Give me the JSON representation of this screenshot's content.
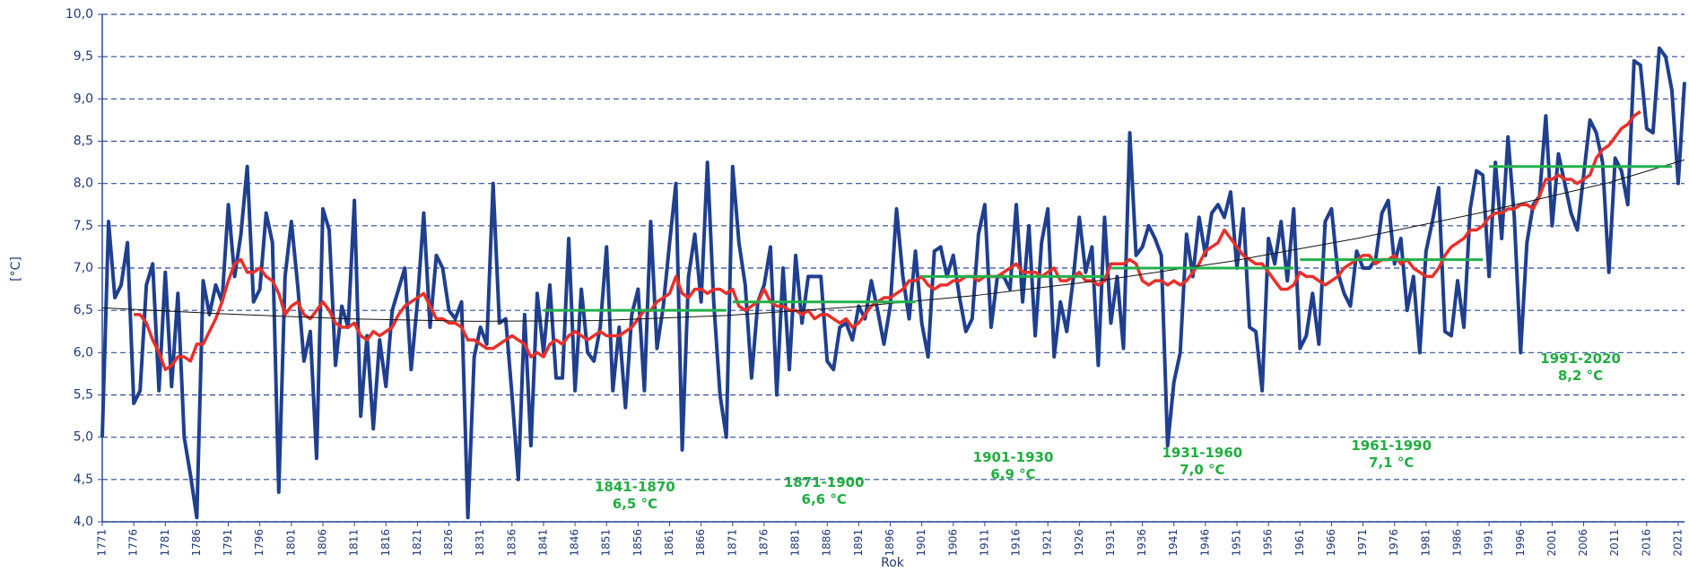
{
  "chart_data": {
    "type": "line",
    "ylabel": "[°C]",
    "xlabel": "Rok",
    "xlim": [
      1771,
      2022
    ],
    "ylim": [
      4,
      10
    ],
    "grid": true,
    "yticks": [
      {
        "value": 4,
        "label": "4,0"
      },
      {
        "value": 4.5,
        "label": "4,5"
      },
      {
        "value": 5,
        "label": "5,0"
      },
      {
        "value": 5.5,
        "label": "5,5"
      },
      {
        "value": 6,
        "label": "6,0"
      },
      {
        "value": 6.5,
        "label": "6,5"
      },
      {
        "value": 7,
        "label": "7,0"
      },
      {
        "value": 7.5,
        "label": "7,5"
      },
      {
        "value": 8,
        "label": "8,0"
      },
      {
        "value": 8.5,
        "label": "8,5"
      },
      {
        "value": 9,
        "label": "9,0"
      },
      {
        "value": 9.5,
        "label": "9,5"
      },
      {
        "value": 10,
        "label": "10,0"
      }
    ],
    "xticks": [
      1771,
      1776,
      1781,
      1786,
      1791,
      1796,
      1801,
      1806,
      1811,
      1816,
      1821,
      1826,
      1831,
      1836,
      1841,
      1846,
      1851,
      1856,
      1861,
      1866,
      1871,
      1876,
      1881,
      1886,
      1891,
      1896,
      1901,
      1906,
      1911,
      1916,
      1921,
      1926,
      1931,
      1936,
      1941,
      1946,
      1951,
      1956,
      1961,
      1966,
      1971,
      1976,
      1981,
      1986,
      1991,
      1996,
      2001,
      2006,
      2011,
      2016,
      2021
    ],
    "x": [
      1771,
      1772,
      1773,
      1774,
      1775,
      1776,
      1777,
      1778,
      1779,
      1780,
      1781,
      1782,
      1783,
      1784,
      1785,
      1786,
      1787,
      1788,
      1789,
      1790,
      1791,
      1792,
      1793,
      1794,
      1795,
      1796,
      1797,
      1798,
      1799,
      1800,
      1801,
      1802,
      1803,
      1804,
      1805,
      1806,
      1807,
      1808,
      1809,
      1810,
      1811,
      1812,
      1813,
      1814,
      1815,
      1816,
      1817,
      1818,
      1819,
      1820,
      1821,
      1822,
      1823,
      1824,
      1825,
      1826,
      1827,
      1828,
      1829,
      1830,
      1831,
      1832,
      1833,
      1834,
      1835,
      1836,
      1837,
      1838,
      1839,
      1840,
      1841,
      1842,
      1843,
      1844,
      1845,
      1846,
      1847,
      1848,
      1849,
      1850,
      1851,
      1852,
      1853,
      1854,
      1855,
      1856,
      1857,
      1858,
      1859,
      1860,
      1861,
      1862,
      1863,
      1864,
      1865,
      1866,
      1867,
      1868,
      1869,
      1870,
      1871,
      1872,
      1873,
      1874,
      1875,
      1876,
      1877,
      1878,
      1879,
      1880,
      1881,
      1882,
      1883,
      1884,
      1885,
      1886,
      1887,
      1888,
      1889,
      1890,
      1891,
      1892,
      1893,
      1894,
      1895,
      1896,
      1897,
      1898,
      1899,
      1900,
      1901,
      1902,
      1903,
      1904,
      1905,
      1906,
      1907,
      1908,
      1909,
      1910,
      1911,
      1912,
      1913,
      1914,
      1915,
      1916,
      1917,
      1918,
      1919,
      1920,
      1921,
      1922,
      1923,
      1924,
      1925,
      1926,
      1927,
      1928,
      1929,
      1930,
      1931,
      1932,
      1933,
      1934,
      1935,
      1936,
      1937,
      1938,
      1939,
      1940,
      1941,
      1942,
      1943,
      1944,
      1945,
      1946,
      1947,
      1948,
      1949,
      1950,
      1951,
      1952,
      1953,
      1954,
      1955,
      1956,
      1957,
      1958,
      1959,
      1960,
      1961,
      1962,
      1963,
      1964,
      1965,
      1966,
      1967,
      1968,
      1969,
      1970,
      1971,
      1972,
      1973,
      1974,
      1975,
      1976,
      1977,
      1978,
      1979,
      1980,
      1981,
      1982,
      1983,
      1984,
      1985,
      1986,
      1987,
      1988,
      1989,
      1990,
      1991,
      1992,
      1993,
      1994,
      1995,
      1996,
      1997,
      1998,
      1999,
      2000,
      2001,
      2002,
      2003,
      2004,
      2005,
      2006,
      2007,
      2008,
      2009,
      2010,
      2011,
      2012,
      2013,
      2014,
      2015,
      2016,
      2017,
      2018,
      2019,
      2020,
      2021,
      2022
    ],
    "series": [
      {
        "color": "#1f3f8f",
        "width": 4,
        "values": [
          5.0,
          7.55,
          6.65,
          6.8,
          7.3,
          5.4,
          5.55,
          6.8,
          7.05,
          5.55,
          6.95,
          5.6,
          6.7,
          5.0,
          4.55,
          4.05,
          6.85,
          6.45,
          6.8,
          6.6,
          7.75,
          6.9,
          7.4,
          8.2,
          6.6,
          6.75,
          7.65,
          7.3,
          4.35,
          6.9,
          7.55,
          6.8,
          5.9,
          6.25,
          4.75,
          7.7,
          7.45,
          5.85,
          6.55,
          6.3,
          7.8,
          5.25,
          6.2,
          5.1,
          6.15,
          5.6,
          6.5,
          6.75,
          7.0,
          5.8,
          6.6,
          7.65,
          6.3,
          7.15,
          7.0,
          6.5,
          6.4,
          6.6,
          4.05,
          5.95,
          6.3,
          6.1,
          8.0,
          6.35,
          6.4,
          5.5,
          4.5,
          6.45,
          4.9,
          6.7,
          6.0,
          6.8,
          5.7,
          5.7,
          7.35,
          5.55,
          6.75,
          6.0,
          5.9,
          6.3,
          7.25,
          5.55,
          6.3,
          5.35,
          6.45,
          6.75,
          5.55,
          7.55,
          6.05,
          6.55,
          7.3,
          8.0,
          4.85,
          6.9,
          7.4,
          6.6,
          8.25,
          6.6,
          5.5,
          5.0,
          8.2,
          7.3,
          6.8,
          5.7,
          6.6,
          6.8,
          7.25,
          5.5,
          7.0,
          5.8,
          7.15,
          6.35,
          6.9,
          6.9,
          6.9,
          5.9,
          5.8,
          6.3,
          6.35,
          6.15,
          6.55,
          6.4,
          6.85,
          6.5,
          6.1,
          6.55,
          7.7,
          6.9,
          6.4,
          7.2,
          6.35,
          5.95,
          7.2,
          7.25,
          6.9,
          7.15,
          6.65,
          6.25,
          6.4,
          7.4,
          7.75,
          6.3,
          6.9,
          6.9,
          6.75,
          7.75,
          6.6,
          7.5,
          6.2,
          7.3,
          7.7,
          5.95,
          6.6,
          6.25,
          6.85,
          7.6,
          6.95,
          7.25,
          5.85,
          7.6,
          6.35,
          6.9,
          6.05,
          8.6,
          7.15,
          7.25,
          7.5,
          7.35,
          7.15,
          4.9,
          5.65,
          6.0,
          7.4,
          6.9,
          7.6,
          7.15,
          7.65,
          7.75,
          7.6,
          7.9,
          7.0,
          7.7,
          6.3,
          6.25,
          5.55,
          7.35,
          7.05,
          7.55,
          6.85,
          7.7,
          6.05,
          6.2,
          6.7,
          6.1,
          7.55,
          7.7,
          6.95,
          6.7,
          6.55,
          7.2,
          7.0,
          7.0,
          7.1,
          7.65,
          7.8,
          7.05,
          7.35,
          6.5,
          6.9,
          6.0,
          7.2,
          7.55,
          7.95,
          6.25,
          6.2,
          6.85,
          6.3,
          7.7,
          8.15,
          8.1,
          6.9,
          8.25,
          7.35,
          8.55,
          7.6,
          6.0,
          7.3,
          7.75,
          7.85,
          8.8,
          7.5,
          8.35,
          8.0,
          7.65,
          7.45,
          8.1,
          8.75,
          8.6,
          8.25,
          6.95,
          8.3,
          8.15,
          7.75,
          9.45,
          9.4,
          8.65,
          8.6,
          9.6,
          9.5,
          9.1,
          8.0,
          9.2
        ]
      },
      {
        "color": "#e8302a",
        "width": 3.5,
        "values": [
          null,
          null,
          null,
          null,
          null,
          6.45,
          6.45,
          6.35,
          6.15,
          6.0,
          5.8,
          5.85,
          5.95,
          5.95,
          5.9,
          6.1,
          6.1,
          6.25,
          6.4,
          6.6,
          6.85,
          7.05,
          7.1,
          6.95,
          6.95,
          7.0,
          6.9,
          6.85,
          6.7,
          6.45,
          6.55,
          6.6,
          6.45,
          6.4,
          6.5,
          6.6,
          6.5,
          6.35,
          6.3,
          6.3,
          6.35,
          6.2,
          6.15,
          6.25,
          6.2,
          6.25,
          6.3,
          6.45,
          6.55,
          6.6,
          6.65,
          6.7,
          6.55,
          6.4,
          6.4,
          6.35,
          6.35,
          6.3,
          6.15,
          6.15,
          6.1,
          6.05,
          6.05,
          6.1,
          6.15,
          6.2,
          6.15,
          6.1,
          5.95,
          6.0,
          5.95,
          6.1,
          6.15,
          6.1,
          6.2,
          6.25,
          6.2,
          6.15,
          6.2,
          6.25,
          6.2,
          6.2,
          6.2,
          6.25,
          6.3,
          6.4,
          6.5,
          6.5,
          6.6,
          6.65,
          6.7,
          6.9,
          6.7,
          6.65,
          6.75,
          6.75,
          6.7,
          6.75,
          6.75,
          6.7,
          6.75,
          6.55,
          6.5,
          6.55,
          6.6,
          6.75,
          6.6,
          6.55,
          6.55,
          6.5,
          6.5,
          6.45,
          6.5,
          6.4,
          6.45,
          6.45,
          6.4,
          6.35,
          6.4,
          6.3,
          6.35,
          6.45,
          6.55,
          6.6,
          6.65,
          6.65,
          6.7,
          6.75,
          6.85,
          6.85,
          6.9,
          6.8,
          6.75,
          6.8,
          6.8,
          6.85,
          6.85,
          6.9,
          6.9,
          6.85,
          6.9,
          6.9,
          6.9,
          6.95,
          7.0,
          7.05,
          6.95,
          6.95,
          6.95,
          6.9,
          6.95,
          7.0,
          6.85,
          6.85,
          6.9,
          6.95,
          6.85,
          6.85,
          6.8,
          6.85,
          7.05,
          7.05,
          7.05,
          7.1,
          7.05,
          6.85,
          6.8,
          6.85,
          6.85,
          6.8,
          6.85,
          6.8,
          6.85,
          6.95,
          7.05,
          7.2,
          7.25,
          7.3,
          7.45,
          7.35,
          7.25,
          7.15,
          7.1,
          7.05,
          7.05,
          6.95,
          6.85,
          6.75,
          6.75,
          6.8,
          6.95,
          6.9,
          6.9,
          6.85,
          6.8,
          6.85,
          6.9,
          7.0,
          7.05,
          7.1,
          7.15,
          7.15,
          7.05,
          7.1,
          7.1,
          7.15,
          7.05,
          7.1,
          7.0,
          6.95,
          6.9,
          6.9,
          7.0,
          7.15,
          7.25,
          7.3,
          7.35,
          7.45,
          7.45,
          7.5,
          7.6,
          7.65,
          7.65,
          7.7,
          7.7,
          7.75,
          7.75,
          7.7,
          7.85,
          8.05,
          8.05,
          8.1,
          8.05,
          8.05,
          8.0,
          8.05,
          8.1,
          8.3,
          8.4,
          8.45,
          8.55,
          8.65,
          8.7,
          8.8,
          8.85,
          null,
          null,
          null,
          null,
          null,
          null,
          null
        ]
      }
    ],
    "trend": {
      "color": "#111111",
      "x": [
        1771,
        1790,
        1810,
        1830,
        1850,
        1870,
        1890,
        1910,
        1930,
        1950,
        1970,
        1990,
        2010,
        2022
      ],
      "values": [
        6.53,
        6.46,
        6.4,
        6.37,
        6.38,
        6.44,
        6.54,
        6.68,
        6.86,
        7.08,
        7.35,
        7.66,
        8.01,
        8.28
      ]
    },
    "period_color": "#22b14c",
    "periods": [
      {
        "label": "1841-1870",
        "value": 6.5,
        "value_label": "6,5 °C",
        "start": 1841,
        "end": 1870
      },
      {
        "label": "1871-1900",
        "value": 6.6,
        "value_label": "6,6 °C",
        "start": 1871,
        "end": 1900
      },
      {
        "label": "1901-1930",
        "value": 6.9,
        "value_label": "6,9 °C",
        "start": 1901,
        "end": 1930
      },
      {
        "label": "1931-1960",
        "value": 7.0,
        "value_label": "7,0 °C",
        "start": 1931,
        "end": 1960
      },
      {
        "label": "1961-1990",
        "value": 7.1,
        "value_label": "7,1 °C",
        "start": 1961,
        "end": 1990
      },
      {
        "label": "1991-2020",
        "value": 8.2,
        "value_label": "8,2 °C",
        "start": 1991,
        "end": 2020
      }
    ]
  }
}
